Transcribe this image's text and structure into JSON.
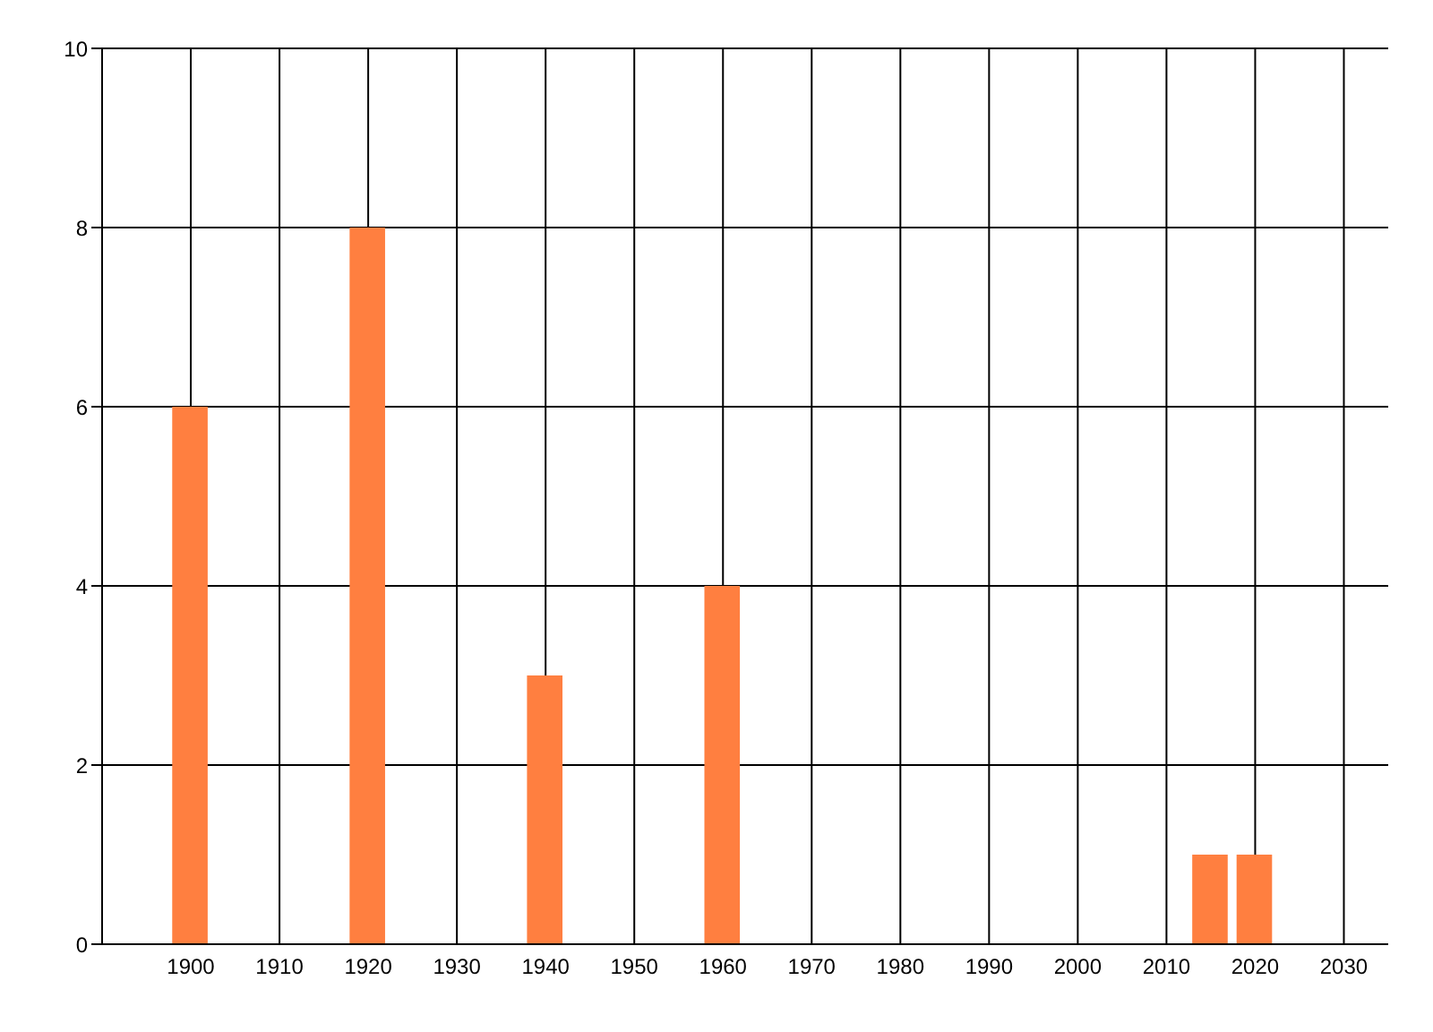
{
  "chart_data": {
    "type": "bar",
    "x": [
      1900,
      1920,
      1940,
      1960,
      2015,
      2020
    ],
    "values": [
      6,
      8,
      3,
      4,
      1,
      1
    ],
    "color": "#ff7f40",
    "xlim": [
      1890,
      2035
    ],
    "xticks": [
      1900,
      1910,
      1920,
      1930,
      1940,
      1950,
      1960,
      1970,
      1980,
      1990,
      2000,
      2010,
      2020,
      2030
    ],
    "ylim": [
      0,
      10
    ],
    "yticks": [
      0,
      2,
      4,
      6,
      8,
      10
    ],
    "grid": true
  }
}
